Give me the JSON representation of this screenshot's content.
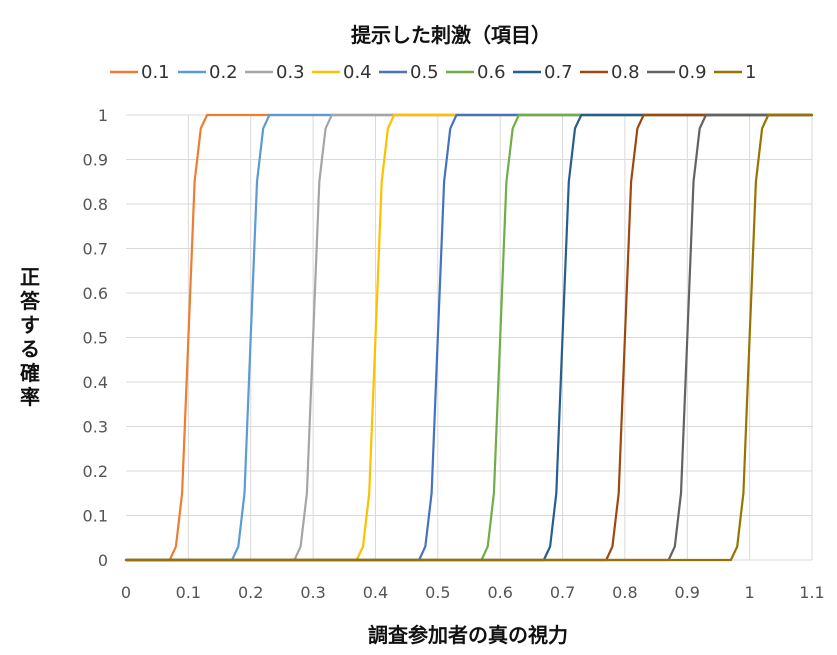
{
  "chart_data": {
    "type": "line",
    "legend_title": "提示した刺激（項目）",
    "xlabel": "調査参加者の真の視力",
    "ylabel": "正答する確率",
    "xlim": [
      0,
      1.1
    ],
    "ylim": [
      0,
      1
    ],
    "x_ticks": [
      "0",
      "0.1",
      "0.2",
      "0.3",
      "0.4",
      "0.5",
      "0.6",
      "0.7",
      "0.8",
      "0.9",
      "1",
      "1.1"
    ],
    "y_ticks": [
      "0",
      "0.1",
      "0.2",
      "0.3",
      "0.4",
      "0.5",
      "0.6",
      "0.7",
      "0.8",
      "0.9",
      "1"
    ],
    "grid": "vertical-and-horizontal",
    "legend_position": "top",
    "offsets": [
      -0.03,
      -0.02,
      -0.01,
      0,
      0.01,
      0.02,
      0.03
    ],
    "probabilities": [
      0.0,
      0.03,
      0.15,
      0.5,
      0.85,
      0.97,
      1.0
    ],
    "series": [
      {
        "name": "0.1",
        "location": 0.1,
        "color": "#ED7D31"
      },
      {
        "name": "0.2",
        "location": 0.2,
        "color": "#5B9BD5"
      },
      {
        "name": "0.3",
        "location": 0.3,
        "color": "#A5A5A5"
      },
      {
        "name": "0.4",
        "location": 0.4,
        "color": "#FFC000"
      },
      {
        "name": "0.5",
        "location": 0.5,
        "color": "#4472C4"
      },
      {
        "name": "0.6",
        "location": 0.6,
        "color": "#70AD47"
      },
      {
        "name": "0.7",
        "location": 0.7,
        "color": "#255E91"
      },
      {
        "name": "0.8",
        "location": 0.8,
        "color": "#9E480E"
      },
      {
        "name": "0.9",
        "location": 0.9,
        "color": "#636363"
      },
      {
        "name": "1",
        "location": 1.0,
        "color": "#997300"
      }
    ]
  }
}
